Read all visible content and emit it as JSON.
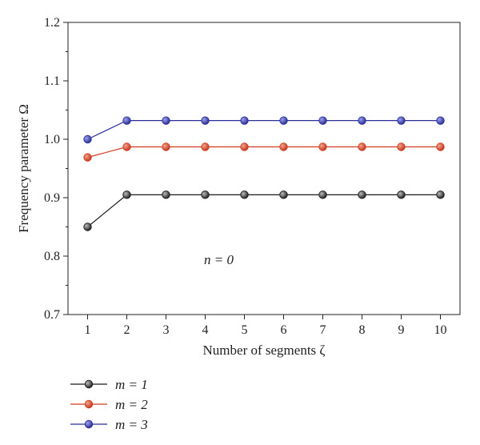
{
  "chart_data": {
    "type": "line",
    "xlabel": "Number of segments ζ",
    "ylabel": "Frequency parameter Ω",
    "x": [
      1,
      2,
      3,
      4,
      5,
      6,
      7,
      8,
      9,
      10
    ],
    "xlim": [
      0.5,
      10.5
    ],
    "ylim": [
      0.7,
      1.2
    ],
    "xticks": [
      "1",
      "2",
      "3",
      "4",
      "5",
      "6",
      "7",
      "8",
      "9",
      "10"
    ],
    "yticks": [
      "0.7",
      "0.8",
      "0.9",
      "1.0",
      "1.1",
      "1.2"
    ],
    "annotation": "n = 0",
    "grid": false,
    "legend_position": "bottom-left, below plot",
    "series": [
      {
        "name": "m = 1",
        "color": "#1a1a1a",
        "values": [
          0.85,
          0.905,
          0.905,
          0.905,
          0.905,
          0.905,
          0.905,
          0.905,
          0.905,
          0.905
        ]
      },
      {
        "name": "m = 2",
        "color": "#d23a1e",
        "values": [
          0.969,
          0.987,
          0.987,
          0.987,
          0.987,
          0.987,
          0.987,
          0.987,
          0.987,
          0.987
        ]
      },
      {
        "name": "m = 3",
        "color": "#2b2f9c",
        "values": [
          1.0,
          1.032,
          1.032,
          1.032,
          1.032,
          1.032,
          1.032,
          1.032,
          1.032,
          1.032
        ]
      }
    ]
  }
}
